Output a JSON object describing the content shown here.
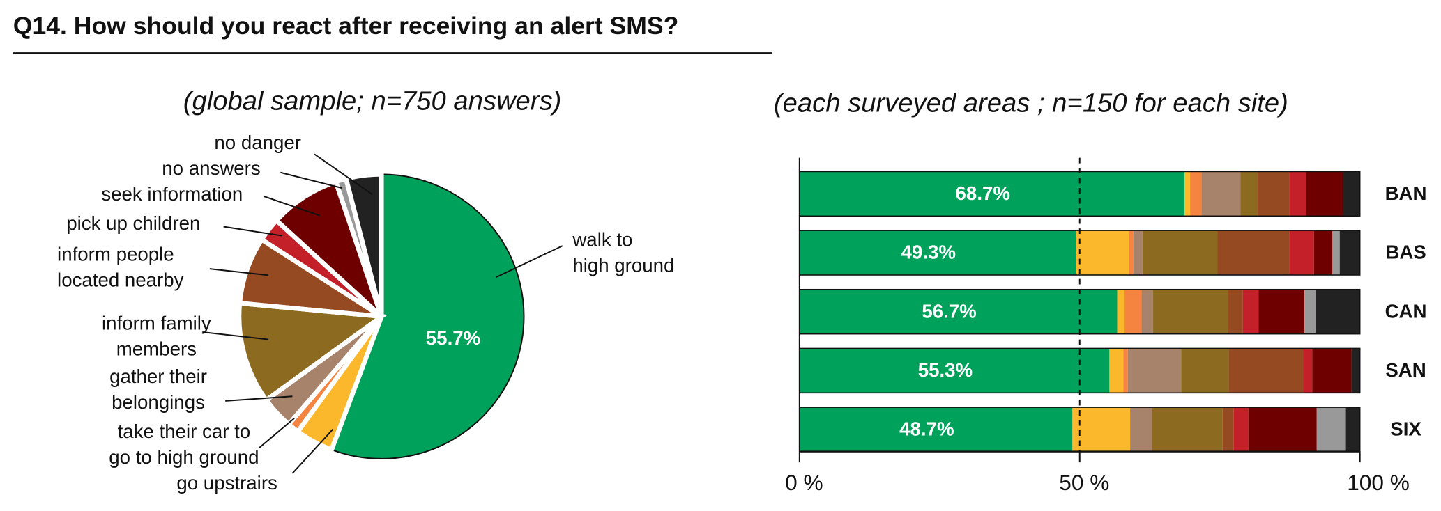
{
  "title": "Q14. How should you react after receiving an alert SMS?",
  "chart_data": [
    {
      "type": "pie",
      "title": "(global sample; n=750 answers)",
      "categories": [
        "walk to\nhigh ground",
        "go upstrairs",
        "take their car to\ngo to high ground",
        "gather their\nbelongings",
        "inform family\nmembers",
        "inform people\nlocated nearby",
        "pick up children",
        "seek information",
        "no answers",
        "no danger"
      ],
      "values": [
        55.7,
        4.3,
        1.3,
        3.7,
        11.5,
        7.6,
        2.7,
        8,
        1.2,
        4
      ],
      "value_labels": [
        "55.7%",
        null,
        null,
        null,
        null,
        null,
        null,
        null,
        null,
        null
      ],
      "colors": [
        "#00a15a",
        "#fcb82c",
        "#f4843f",
        "#a8836c",
        "#8c6a1f",
        "#964a22",
        "#c4202a",
        "#6e0000",
        "#999999",
        "#222222"
      ]
    },
    {
      "type": "stacked_barh",
      "title": "(each surveyed areas ; n=150 for each site)",
      "categories": [
        "BAN",
        "BAS",
        "CAN",
        "SAN",
        "SIX"
      ],
      "xlim": [
        0,
        100
      ],
      "xticks": [
        {
          "value": 0,
          "label": "0 %"
        },
        {
          "value": 50,
          "label": "50 %"
        },
        {
          "value": 100,
          "label": "100 %"
        }
      ],
      "reference_line": 50,
      "series": [
        {
          "color": "#00a15a",
          "values": [
            68.7,
            49.3,
            56.7,
            55.3,
            48.7
          ],
          "value_labels": [
            "68.7%",
            "49.3%",
            "56.7%",
            "55.3%",
            "48.7%"
          ]
        },
        {
          "color": "#fcb82c",
          "values": [
            1.0,
            9.5,
            1.3,
            2.5,
            10.3
          ]
        },
        {
          "color": "#f4843f",
          "values": [
            2.0,
            0.8,
            3.0,
            0.8,
            0
          ]
        },
        {
          "color": "#a8836c",
          "values": [
            7.0,
            1.6,
            2.1,
            9.5,
            3.9
          ]
        },
        {
          "color": "#8c6a1f",
          "values": [
            3.0,
            13.4,
            13.4,
            8.5,
            12.6
          ]
        },
        {
          "color": "#964a22",
          "values": [
            5.7,
            12.8,
            2.6,
            13.3,
            2.0
          ]
        },
        {
          "color": "#c4202a",
          "values": [
            3.0,
            4.4,
            2.8,
            1.6,
            2.6
          ]
        },
        {
          "color": "#6e0000",
          "values": [
            6.6,
            3.3,
            8.2,
            7.0,
            12.2
          ]
        },
        {
          "color": "#999999",
          "values": [
            0,
            1.3,
            2.0,
            0,
            5.2
          ]
        },
        {
          "color": "#222222",
          "values": [
            3.0,
            3.6,
            7.9,
            1.5,
            2.5
          ]
        }
      ]
    }
  ]
}
